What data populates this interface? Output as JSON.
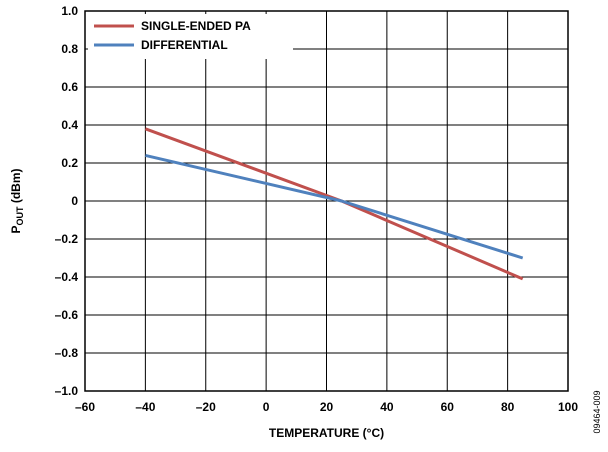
{
  "chart_data": {
    "type": "line",
    "title": "",
    "xlabel": "TEMPERATURE (°C)",
    "ylabel_main": "P",
    "ylabel_sub": "OUT",
    "ylabel_tail": " (dBm)",
    "xlim": [
      -60,
      100
    ],
    "ylim": [
      -1.0,
      1.0
    ],
    "x_ticks": [
      -60,
      -40,
      -20,
      0,
      20,
      40,
      60,
      80,
      100
    ],
    "x_tick_labels": [
      "–60",
      "–40",
      "–20",
      "0",
      "20",
      "40",
      "60",
      "80",
      "100"
    ],
    "y_ticks": [
      1.0,
      0.8,
      0.6,
      0.4,
      0.2,
      0,
      -0.2,
      -0.4,
      -0.6,
      -0.8,
      -1.0
    ],
    "y_tick_labels": [
      "1.0",
      "0.8",
      "0.6",
      "0.4",
      "0.2",
      "0",
      "–0.2",
      "–0.4",
      "–0.6",
      "–0.8",
      "–1.0"
    ],
    "grid": true,
    "legend_position": "top-left",
    "series": [
      {
        "name": "SINGLE-ENDED PA",
        "color": "#c0504d",
        "x": [
          -40,
          25,
          85
        ],
        "y": [
          0.38,
          0.0,
          -0.41
        ]
      },
      {
        "name": "DIFFERENTIAL",
        "color": "#4f81bd",
        "x": [
          -40,
          25,
          85
        ],
        "y": [
          0.24,
          0.0,
          -0.3
        ]
      }
    ],
    "figure_id": "09464-009"
  }
}
